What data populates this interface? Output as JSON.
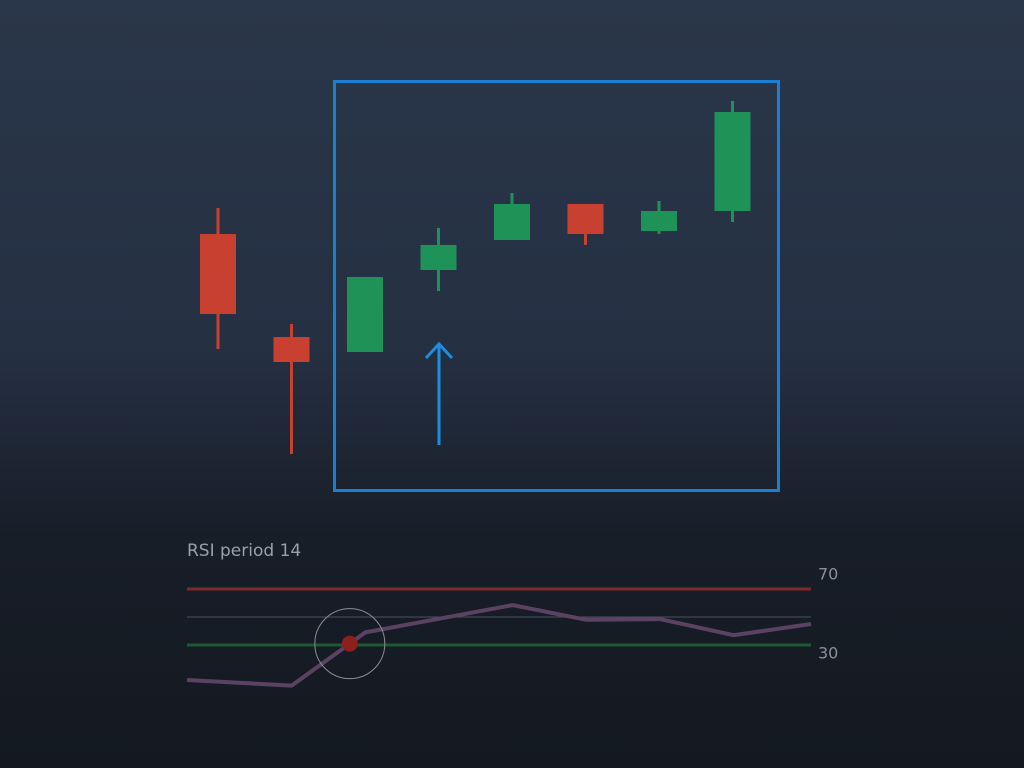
{
  "chart_data": [
    {
      "type": "candlestick",
      "open": [
        66.5,
        40.75,
        37,
        57.5,
        65,
        74,
        67.25,
        72.25
      ],
      "high": [
        73,
        44,
        55.75,
        68,
        76.75,
        74,
        74.75,
        99.75
      ],
      "low": [
        37.75,
        11.5,
        37,
        52.25,
        65,
        63.75,
        66.5,
        69.5
      ],
      "close": [
        46.5,
        34.5,
        55.75,
        63.75,
        74,
        66.5,
        72.25,
        97
      ],
      "ylim": [
        0,
        100
      ],
      "up_color": "#1f9357",
      "down_color": "#c8402f"
    },
    {
      "type": "line",
      "title": "RSI period 14",
      "x": [
        -0.42,
        1,
        1.79,
        2,
        4,
        5,
        6,
        7,
        8.05
      ],
      "values": [
        5,
        1,
        31,
        39,
        58.5,
        48,
        48.5,
        37,
        45
      ],
      "color": "#5c4262",
      "xlim": [
        -0.42,
        8.05
      ],
      "ylim": [
        0,
        75
      ],
      "yticks": [
        30,
        70
      ],
      "tick_colors": [
        "#1d5a34",
        "#7d2a2a"
      ],
      "midline": 50,
      "highlight_index": 2,
      "highlight_color": "#8e1f1f"
    }
  ]
}
